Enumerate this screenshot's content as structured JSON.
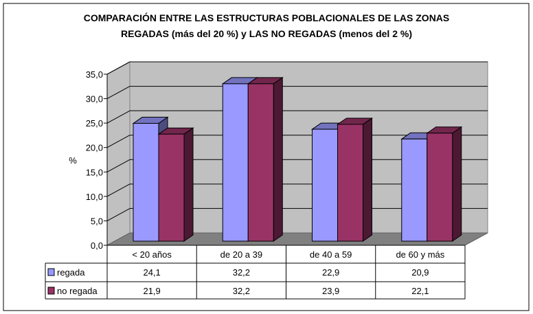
{
  "chart_data": {
    "type": "bar",
    "title": "COMPARACIÓN ENTRE LAS ESTRUCTURAS POBLACIONALES DE LAS ZONAS",
    "subtitle": "REGADAS (más del 20 %) y LAS NO REGADAS (menos del 2 %)",
    "ylabel": "%",
    "xlabel": "",
    "ylim": [
      0,
      35
    ],
    "yticks": [
      "0,0",
      "5,0",
      "10,0",
      "15,0",
      "20,0",
      "25,0",
      "30,0",
      "35,0"
    ],
    "grid": true,
    "legend": "data-table",
    "categories": [
      "< 20 años",
      "de 20 a 39",
      "de 40 a 59",
      "de 60 y más"
    ],
    "series": [
      {
        "name": "regada",
        "values": [
          24.1,
          32.2,
          22.9,
          20.9
        ],
        "labels": [
          "24,1",
          "32,2",
          "22,9",
          "20,9"
        ],
        "color": "#9999ff"
      },
      {
        "name": "no regada",
        "values": [
          21.9,
          32.2,
          23.9,
          22.1
        ],
        "labels": [
          "21,9",
          "32,2",
          "23,9",
          "22,1"
        ],
        "color": "#993366"
      }
    ]
  }
}
